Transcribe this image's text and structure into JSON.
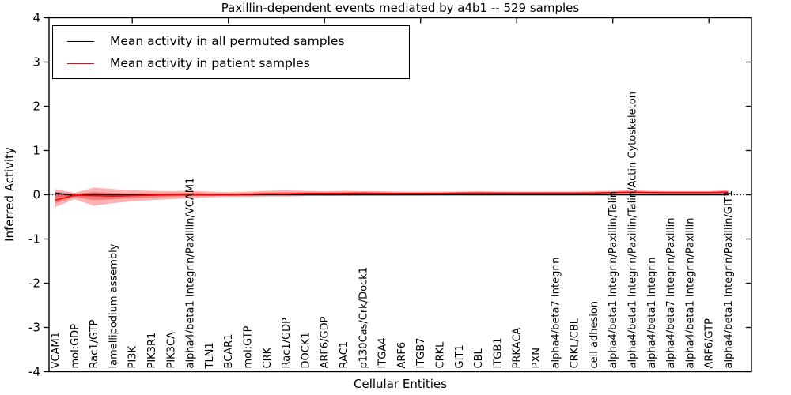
{
  "title": "Paxillin-dependent events mediated by a4b1 -- 529 samples",
  "legend": {
    "entries": [
      {
        "label": "Mean activity in all permuted samples",
        "color": "#000000"
      },
      {
        "label": "Mean activity in patient samples",
        "color": "#ff0000"
      }
    ],
    "position": "upper left"
  },
  "chart_data": {
    "type": "line",
    "title": "Paxillin-dependent events mediated by a4b1 -- 529 samples",
    "xlabel": "Cellular Entities",
    "ylabel": "Inferred Activity",
    "ylim": [
      -4,
      4
    ],
    "yticks": [
      -4,
      -3,
      -2,
      -1,
      0,
      1,
      2,
      3,
      4
    ],
    "grid": false,
    "legend_position": "upper left",
    "x_tick_label_rotation": 90,
    "zero_line": {
      "y": 0,
      "style": "dotted",
      "color": "#000000"
    },
    "categories": [
      "VCAM1",
      "mol:GDP",
      "Rac1/GTP",
      "lamellipodium assembly",
      "PI3K",
      "PIK3R1",
      "PIK3CA",
      "alpha4/beta1 Integrin/Paxillin/VCAM1",
      "TLN1",
      "BCAR1",
      "mol:GTP",
      "CRK",
      "Rac1/GDP",
      "DOCK1",
      "ARF6/GDP",
      "RAC1",
      "p130Cas/Crk/Dock1",
      "ITGA4",
      "ARF6",
      "ITGB7",
      "CRKL",
      "GIT1",
      "CBL",
      "ITGB1",
      "PRKACA",
      "PXN",
      "alpha4/beta7 Integrin",
      "CRKL/CBL",
      "cell adhesion",
      "alpha4/beta1 Integrin/Paxillin/Talin",
      "alpha4/beta1 Integrin/Paxillin/Talin/Actin Cytoskeleton",
      "alpha4/beta1 Integrin",
      "alpha4/beta7 Integrin/Paxillin",
      "alpha4/beta1 Integrin/Paxillin",
      "ARF6/GTP",
      "alpha4/beta1 Integrin/Paxillin/GIT1"
    ],
    "series": [
      {
        "name": "Mean activity in all permuted samples",
        "color": "#000000",
        "band_color": "rgba(0,0,0,0.16)",
        "values": [
          0.04,
          -0.02,
          0.01,
          0.0,
          0.005,
          0.0,
          0.0,
          0.0,
          0.0,
          0.0,
          0.0,
          0.0,
          0.0,
          0.0,
          0.0,
          0.0,
          0.0,
          0.0,
          0.0,
          0.0,
          0.0,
          0.0,
          0.0,
          0.0,
          0.0,
          0.0,
          0.0,
          0.0,
          0.0,
          0.0,
          0.0,
          0.0,
          0.0,
          0.0,
          0.0,
          0.0
        ],
        "band_upper": [
          0.07,
          0.035,
          0.05,
          0.03,
          0.025,
          0.025,
          0.025,
          0.025,
          0.025,
          0.025,
          0.025,
          0.025,
          0.025,
          0.025,
          0.025,
          0.025,
          0.025,
          0.025,
          0.025,
          0.025,
          0.025,
          0.025,
          0.025,
          0.025,
          0.025,
          0.025,
          0.025,
          0.025,
          0.025,
          0.025,
          0.025,
          0.025,
          0.025,
          0.025,
          0.025,
          0.025
        ],
        "band_lower": [
          -0.05,
          -0.035,
          -0.04,
          -0.03,
          -0.025,
          -0.025,
          -0.025,
          -0.025,
          -0.025,
          -0.025,
          -0.025,
          -0.025,
          -0.025,
          -0.025,
          -0.025,
          -0.025,
          -0.025,
          -0.025,
          -0.025,
          -0.025,
          -0.025,
          -0.025,
          -0.025,
          -0.025,
          -0.025,
          -0.025,
          -0.025,
          -0.025,
          -0.025,
          -0.025,
          -0.025,
          -0.025,
          -0.025,
          -0.025,
          -0.025,
          -0.025
        ]
      },
      {
        "name": "Mean activity in patient samples",
        "color": "#ff0000",
        "band_color": "rgba(255,0,0,0.30)",
        "values": [
          -0.12,
          -0.01,
          -0.02,
          -0.03,
          -0.02,
          -0.01,
          0.0,
          0.01,
          0.0,
          0.0,
          0.01,
          0.02,
          0.02,
          0.03,
          0.03,
          0.03,
          0.04,
          0.03,
          0.03,
          0.03,
          0.03,
          0.04,
          0.04,
          0.04,
          0.04,
          0.04,
          0.04,
          0.04,
          0.04,
          0.05,
          0.06,
          0.05,
          0.05,
          0.05,
          0.05,
          0.06
        ],
        "band_upper": [
          0.13,
          0.04,
          0.16,
          0.13,
          0.1,
          0.09,
          0.08,
          0.09,
          0.07,
          0.06,
          0.07,
          0.09,
          0.1,
          0.09,
          0.08,
          0.09,
          0.08,
          0.08,
          0.07,
          0.07,
          0.07,
          0.07,
          0.08,
          0.07,
          0.07,
          0.07,
          0.07,
          0.07,
          0.08,
          0.09,
          0.1,
          0.09,
          0.08,
          0.08,
          0.08,
          0.11
        ],
        "band_lower": [
          -0.28,
          -0.1,
          -0.25,
          -0.19,
          -0.15,
          -0.12,
          -0.1,
          -0.08,
          -0.06,
          -0.05,
          -0.05,
          -0.04,
          -0.04,
          -0.03,
          -0.03,
          -0.03,
          -0.02,
          -0.02,
          -0.02,
          -0.02,
          -0.01,
          -0.01,
          -0.01,
          -0.01,
          0.0,
          0.0,
          0.0,
          0.0,
          0.0,
          0.01,
          0.01,
          0.01,
          0.01,
          0.01,
          0.01,
          -0.02
        ]
      }
    ]
  }
}
